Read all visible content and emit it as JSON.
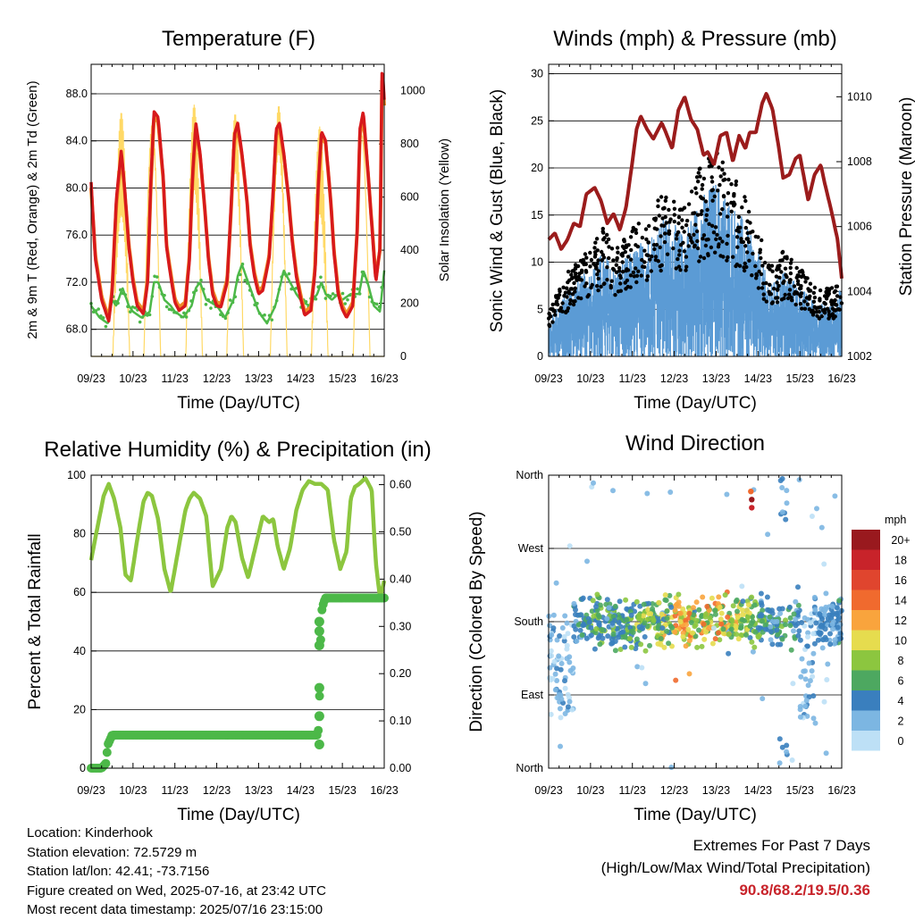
{
  "chart_data": [
    {
      "id": "temperature",
      "type": "line",
      "title": "Temperature (F)",
      "xlabel": "Time (Day/UTC)",
      "ylabel": "2m & 9m T (Red, Orange) & 2m Td (Green)",
      "y2label": "Solar Insolation (Yellow)",
      "x_ticks": [
        "09/23",
        "10/23",
        "11/23",
        "12/23",
        "13/23",
        "14/23",
        "15/23",
        "16/23"
      ],
      "y_ticks": [
        "68.0",
        "72.0",
        "76.0",
        "80.0",
        "84.0",
        "88.0"
      ],
      "y2_ticks": [
        "0",
        "200",
        "400",
        "600",
        "800",
        "1000"
      ],
      "ylim": [
        65.7,
        90.5
      ],
      "y2lim": [
        0,
        1100
      ],
      "xlim_days": [
        0,
        7
      ],
      "series": [
        {
          "role": "temp_2m",
          "color": "#d7191c",
          "x": [
            0,
            0.1,
            0.25,
            0.42,
            0.5,
            0.6,
            0.72,
            0.8,
            0.9,
            1,
            1.1,
            1.25,
            1.35,
            1.42,
            1.5,
            1.6,
            1.72,
            1.8,
            1.9,
            2,
            2.1,
            2.25,
            2.35,
            2.42,
            2.5,
            2.6,
            2.72,
            2.8,
            2.9,
            3,
            3.1,
            3.25,
            3.35,
            3.42,
            3.5,
            3.6,
            3.72,
            3.8,
            3.9,
            4,
            4.1,
            4.25,
            4.35,
            4.42,
            4.5,
            4.6,
            4.72,
            4.8,
            4.9,
            5,
            5.1,
            5.25,
            5.35,
            5.42,
            5.5,
            5.6,
            5.72,
            5.8,
            5.9,
            6,
            6.1,
            6.25,
            6.35,
            6.42,
            6.5,
            6.6,
            6.72,
            6.8,
            6.9,
            6.95,
            7
          ],
          "y": [
            80.5,
            74.0,
            70.5,
            68.7,
            71.0,
            79.0,
            83.2,
            80.0,
            75.0,
            72.0,
            70.0,
            69.3,
            72.0,
            80.0,
            86.5,
            86.0,
            81.0,
            75.0,
            72.5,
            70.3,
            69.6,
            70.0,
            74.0,
            81.0,
            85.5,
            83.0,
            78.0,
            74.0,
            71.0,
            70.0,
            69.9,
            72.0,
            79.0,
            84.5,
            85.5,
            83.0,
            79.0,
            75.0,
            72.5,
            71.0,
            71.3,
            74.0,
            80.0,
            85.0,
            85.5,
            83.0,
            79.0,
            75.5,
            72.5,
            70.7,
            69.2,
            69.6,
            73.0,
            80.0,
            84.8,
            84.0,
            79.0,
            74.5,
            71.0,
            69.7,
            69.0,
            70.0,
            76.0,
            85.0,
            86.5,
            82.0,
            76.0,
            72.0,
            75.0,
            90.5,
            87.5
          ]
        },
        {
          "role": "temp_9m",
          "color": "#f08c28",
          "x": [
            0,
            0.1,
            0.25,
            0.42,
            0.5,
            0.6,
            0.72,
            0.8,
            0.9,
            1,
            1.1,
            1.25,
            1.35,
            1.42,
            1.5,
            1.6,
            1.72,
            1.8,
            1.9,
            2,
            2.1,
            2.25,
            2.35,
            2.42,
            2.5,
            2.6,
            2.72,
            2.8,
            2.9,
            3,
            3.1,
            3.25,
            3.35,
            3.42,
            3.5,
            3.6,
            3.72,
            3.8,
            3.9,
            4,
            4.1,
            4.25,
            4.35,
            4.42,
            4.5,
            4.6,
            4.72,
            4.8,
            4.9,
            5,
            5.1,
            5.25,
            5.35,
            5.42,
            5.5,
            5.6,
            5.72,
            5.8,
            5.9,
            6,
            6.1,
            6.25,
            6.35,
            6.42,
            6.5,
            6.6,
            6.72,
            6.8,
            6.9,
            6.95,
            7
          ],
          "y": [
            80.0,
            74.3,
            70.8,
            69.0,
            71.3,
            78.5,
            82.8,
            79.8,
            75.2,
            72.3,
            70.3,
            69.6,
            72.3,
            79.5,
            86.0,
            85.6,
            80.8,
            75.2,
            72.8,
            70.6,
            69.9,
            70.3,
            74.3,
            80.5,
            85.0,
            82.8,
            78.0,
            74.2,
            71.3,
            70.3,
            70.2,
            72.3,
            78.5,
            84.0,
            85.0,
            82.8,
            79.0,
            75.2,
            72.8,
            71.3,
            71.6,
            74.2,
            79.5,
            84.5,
            85.0,
            82.8,
            79.0,
            75.7,
            72.8,
            71.0,
            69.5,
            69.9,
            73.3,
            79.5,
            84.3,
            83.8,
            79.0,
            74.7,
            71.3,
            70.0,
            69.3,
            70.3,
            76.0,
            84.5,
            86.0,
            81.8,
            76.2,
            72.3,
            74.8,
            89.8,
            87.0
          ]
        },
        {
          "role": "dewpoint_2m",
          "color": "#4cb848",
          "x": [
            0,
            0.2,
            0.4,
            0.5,
            0.6,
            0.75,
            0.9,
            1,
            1.2,
            1.4,
            1.5,
            1.6,
            1.75,
            1.9,
            2,
            2.2,
            2.4,
            2.5,
            2.6,
            2.75,
            2.9,
            3,
            3.2,
            3.4,
            3.5,
            3.6,
            3.75,
            3.9,
            4,
            4.2,
            4.4,
            4.5,
            4.6,
            4.75,
            4.9,
            5,
            5.2,
            5.4,
            5.5,
            5.6,
            5.75,
            5.9,
            6,
            6.2,
            6.4,
            6.5,
            6.6,
            6.75,
            6.9,
            7
          ],
          "y": [
            70.0,
            69.0,
            68.5,
            70.5,
            70.0,
            71.5,
            70.0,
            69.5,
            69.0,
            69.5,
            72.0,
            72.0,
            70.5,
            70.0,
            69.5,
            69.0,
            70.0,
            71.5,
            72.0,
            70.5,
            70.2,
            70.0,
            69.0,
            70.5,
            72.5,
            73.5,
            72.0,
            70.5,
            69.5,
            68.5,
            70.0,
            71.5,
            73.0,
            72.0,
            71.0,
            70.5,
            70.0,
            71.0,
            72.0,
            71.0,
            70.5,
            71.0,
            70.5,
            71.0,
            71.0,
            73.0,
            72.0,
            70.0,
            69.5,
            73.0
          ]
        },
        {
          "role": "solar",
          "axis": "y2",
          "color": "#ffd966",
          "peaks_day": [
            0.72,
            1.46,
            2.46,
            3.44,
            4.48,
            5.46,
            6.46
          ],
          "peaks_value": [
            920,
            980,
            960,
            950,
            1000,
            870,
            960
          ]
        }
      ]
    },
    {
      "id": "winds",
      "type": "line+scatter",
      "title": "Winds (mph) & Pressure (mb)",
      "xlabel": "Time (Day/UTC)",
      "ylabel": "Sonic Wind & Gust (Blue, Black)",
      "y2label": "Station Pressure (Maroon)",
      "x_ticks": [
        "09/23",
        "10/23",
        "11/23",
        "12/23",
        "13/23",
        "14/23",
        "15/23",
        "16/23"
      ],
      "y_ticks": [
        "0",
        "5",
        "10",
        "15",
        "20",
        "25",
        "30"
      ],
      "y2_ticks": [
        "1002",
        "1004",
        "1006",
        "1008",
        "1010"
      ],
      "ylim": [
        0,
        31
      ],
      "y2lim": [
        1002,
        1011
      ],
      "xlim_days": [
        0,
        7
      ],
      "series": [
        {
          "role": "pressure",
          "axis": "y2",
          "color": "#9b1c1c",
          "x": [
            0,
            0.15,
            0.3,
            0.45,
            0.6,
            0.75,
            0.9,
            1.1,
            1.25,
            1.4,
            1.55,
            1.7,
            1.85,
            2.0,
            2.1,
            2.2,
            2.35,
            2.5,
            2.7,
            2.8,
            2.95,
            3.1,
            3.25,
            3.4,
            3.55,
            3.7,
            3.8,
            3.95,
            4.1,
            4.25,
            4.4,
            4.55,
            4.7,
            4.8,
            4.95,
            5.1,
            5.2,
            5.35,
            5.5,
            5.6,
            5.75,
            5.9,
            6.0,
            6.1,
            6.2,
            6.35,
            6.5,
            6.6,
            6.75,
            6.9,
            7.0
          ],
          "y": [
            1005.6,
            1005.8,
            1005.3,
            1005.6,
            1006.1,
            1006.0,
            1007.0,
            1007.2,
            1006.8,
            1006.1,
            1006.4,
            1005.9,
            1006.6,
            1008.0,
            1009.0,
            1009.4,
            1009.0,
            1008.7,
            1009.2,
            1008.9,
            1008.4,
            1009.6,
            1010.0,
            1009.3,
            1009.0,
            1008.2,
            1008.3,
            1007.9,
            1008.8,
            1008.9,
            1008.0,
            1008.8,
            1008.4,
            1008.9,
            1008.9,
            1009.8,
            1010.1,
            1009.6,
            1008.4,
            1007.5,
            1007.6,
            1008.1,
            1008.2,
            1007.5,
            1006.8,
            1007.6,
            1007.9,
            1007.3,
            1006.5,
            1005.6,
            1004.4
          ]
        },
        {
          "role": "sonic_wind",
          "color": "#5b9bd5",
          "style": "dense-band"
        },
        {
          "role": "gust",
          "color": "#000000",
          "style": "points"
        }
      ]
    },
    {
      "id": "rh_precip",
      "type": "line+scatter",
      "title": "Relative Humidity (%) & Precipitation (in)",
      "xlabel": "Time (Day/UTC)",
      "ylabel": "Percent & Total Rainfall",
      "x_ticks": [
        "09/23",
        "10/23",
        "11/23",
        "12/23",
        "13/23",
        "14/23",
        "15/23",
        "16/23"
      ],
      "y_ticks": [
        "0",
        "20",
        "40",
        "60",
        "80",
        "100"
      ],
      "y2_ticks": [
        "0.00",
        "0.10",
        "0.20",
        "0.30",
        "0.40",
        "0.50",
        "0.60"
      ],
      "ylim": [
        0,
        100
      ],
      "y2lim": [
        0,
        0.62
      ],
      "xlim_days": [
        0,
        7
      ],
      "series": [
        {
          "role": "rh",
          "color": "#8cc63f",
          "x": [
            0,
            0.12,
            0.3,
            0.42,
            0.55,
            0.7,
            0.82,
            0.95,
            1.1,
            1.25,
            1.35,
            1.45,
            1.6,
            1.75,
            1.9,
            2.1,
            2.25,
            2.35,
            2.45,
            2.6,
            2.75,
            2.9,
            3.1,
            3.25,
            3.35,
            3.45,
            3.6,
            3.75,
            3.9,
            4.1,
            4.25,
            4.35,
            4.45,
            4.6,
            4.75,
            4.9,
            5.05,
            5.2,
            5.35,
            5.5,
            5.65,
            5.8,
            5.95,
            6.1,
            6.2,
            6.3,
            6.4,
            6.55,
            6.7,
            6.8,
            6.9,
            7.0
          ],
          "y": [
            71,
            80,
            93,
            97,
            92,
            82,
            66,
            64,
            78,
            91,
            94,
            93,
            85,
            68,
            60,
            76,
            88,
            92,
            94,
            92,
            86,
            62,
            68,
            82,
            86,
            84,
            72,
            65,
            74,
            86,
            84,
            85,
            76,
            68,
            75,
            88,
            95,
            98,
            97,
            97,
            95,
            78,
            68,
            74,
            92,
            96,
            97,
            99,
            95,
            70,
            58,
            64
          ]
        },
        {
          "role": "precip_total",
          "axis": "y2",
          "color": "#4cb848",
          "x": [
            0,
            0.25,
            0.35,
            0.4,
            0.5,
            1,
            2,
            3,
            4,
            5,
            5.3,
            5.42,
            5.44,
            5.46,
            5.48,
            5.5,
            5.55,
            5.6,
            5.8,
            6,
            6.5,
            7
          ],
          "y": [
            0,
            0,
            0.01,
            0.05,
            0.07,
            0.07,
            0.07,
            0.07,
            0.07,
            0.07,
            0.07,
            0.07,
            0.11,
            0.17,
            0.26,
            0.33,
            0.35,
            0.36,
            0.36,
            0.36,
            0.36,
            0.36
          ]
        }
      ]
    },
    {
      "id": "wind_dir",
      "type": "scatter",
      "title": "Wind Direction",
      "xlabel": "Time (Day/UTC)",
      "ylabel": "Direction (Colored By Speed)",
      "x_ticks": [
        "09/23",
        "10/23",
        "11/23",
        "12/23",
        "13/23",
        "14/23",
        "15/23",
        "16/23"
      ],
      "y_ticks": [
        "North",
        "East",
        "South",
        "West",
        "North"
      ],
      "ylim_degrees": [
        0,
        360
      ],
      "xlim_days": [
        0,
        7
      ],
      "legend": {
        "title": "mph",
        "labels": [
          "20+",
          "18",
          "16",
          "14",
          "12",
          "10",
          "8",
          "6",
          "4",
          "2",
          "0"
        ],
        "colors": [
          "#99191e",
          "#c8232a",
          "#e0452e",
          "#f06a2e",
          "#f9a43d",
          "#e6dc4e",
          "#8cc63f",
          "#4da860",
          "#3a7fbe",
          "#7cb6e2",
          "#bde0f6"
        ]
      }
    }
  ],
  "footer": {
    "location": "Location: Kinderhook",
    "elevation": "Station elevation: 72.5729 m",
    "latlon": "Station lat/lon: 42.41; -73.7156",
    "created": "Figure created on Wed, 2025-07-16, at 23:42 UTC",
    "recent": "Most recent data timestamp: 2025/07/16 23:15:00"
  },
  "extremes": {
    "heading": "Extremes For Past 7 Days",
    "subheading": "(High/Low/Max Wind/Total Precipitation)",
    "values": "90.8/68.2/19.5/0.36"
  }
}
